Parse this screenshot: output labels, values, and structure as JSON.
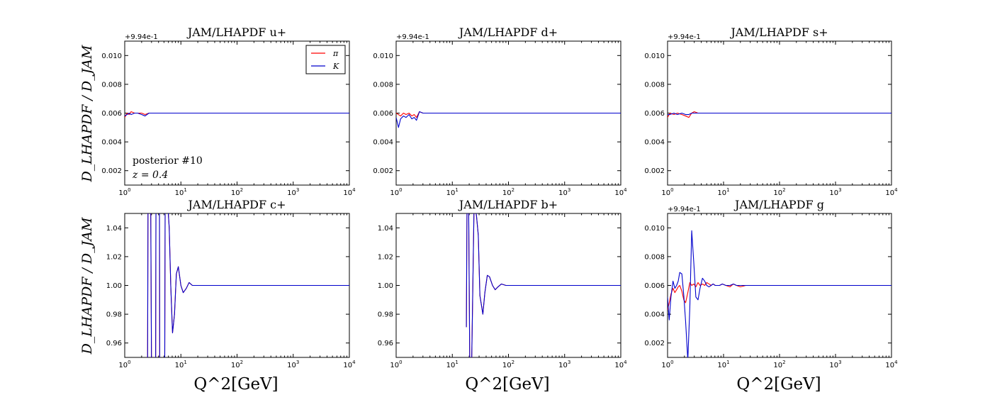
{
  "figure": {
    "ylabel": "D_LHAPDF / D_JAM",
    "xlabel": "Q^2[GeV]",
    "legend": {
      "entries": [
        {
          "label": "π",
          "color": "#ff0000"
        },
        {
          "label": "K",
          "color": "#0000cc"
        }
      ],
      "placement": "top-right"
    },
    "annotation": {
      "line1": "posterior #10",
      "line2": "z = 0.4"
    }
  },
  "chart_data": [
    {
      "type": "line",
      "title": "JAM/LHAPDF u+",
      "x_scale": "log",
      "xlim": [
        1,
        10000
      ],
      "x_ticks": [
        "10^0",
        "10^1",
        "10^2",
        "10^3",
        "10^4"
      ],
      "offset_text": "+9.94e-1",
      "ylim": [
        0.001,
        0.011
      ],
      "y_ticks": [
        "0.002",
        "0.004",
        "0.006",
        "0.008",
        "0.010"
      ],
      "series": [
        {
          "name": "π",
          "color": "#ff0000",
          "x": [
            1,
            1.1,
            1.2,
            1.3,
            1.5,
            1.7,
            2,
            2.3,
            2.7,
            3,
            4,
            6,
            10,
            100,
            1000,
            10000
          ],
          "values": [
            0.0057,
            0.006,
            0.0059,
            0.0061,
            0.006,
            0.006,
            0.006,
            0.0059,
            0.006,
            0.006,
            0.006,
            0.006,
            0.006,
            0.006,
            0.006,
            0.006
          ]
        },
        {
          "name": "K",
          "color": "#0000cc",
          "x": [
            1,
            1.1,
            1.2,
            1.3,
            1.5,
            1.7,
            2,
            2.3,
            2.7,
            3,
            4,
            6,
            10,
            100,
            1000,
            10000
          ],
          "values": [
            0.0058,
            0.0059,
            0.006,
            0.0059,
            0.006,
            0.006,
            0.0059,
            0.0058,
            0.006,
            0.006,
            0.006,
            0.006,
            0.006,
            0.006,
            0.006,
            0.006
          ]
        }
      ]
    },
    {
      "type": "line",
      "title": "JAM/LHAPDF d+",
      "x_scale": "log",
      "xlim": [
        1,
        10000
      ],
      "x_ticks": [
        "10^0",
        "10^1",
        "10^2",
        "10^3",
        "10^4"
      ],
      "offset_text": "+9.94e-1",
      "ylim": [
        0.001,
        0.011
      ],
      "y_ticks": [
        "0.002",
        "0.004",
        "0.006",
        "0.008",
        "0.010"
      ],
      "series": [
        {
          "name": "π",
          "color": "#ff0000",
          "x": [
            1,
            1.1,
            1.2,
            1.35,
            1.5,
            1.7,
            1.9,
            2.1,
            2.3,
            2.6,
            3,
            4,
            6,
            10,
            100,
            1000,
            10000
          ],
          "values": [
            0.006,
            0.0059,
            0.0058,
            0.006,
            0.0059,
            0.006,
            0.0058,
            0.0059,
            0.0057,
            0.0061,
            0.006,
            0.006,
            0.006,
            0.006,
            0.006,
            0.006,
            0.006
          ]
        },
        {
          "name": "K",
          "color": "#0000cc",
          "x": [
            1,
            1.1,
            1.2,
            1.35,
            1.5,
            1.7,
            1.9,
            2.1,
            2.3,
            2.6,
            3,
            4,
            6,
            10,
            100,
            1000,
            10000
          ],
          "values": [
            0.0057,
            0.005,
            0.0056,
            0.0058,
            0.0057,
            0.0059,
            0.0056,
            0.0057,
            0.0055,
            0.0061,
            0.006,
            0.006,
            0.006,
            0.006,
            0.006,
            0.006,
            0.006
          ]
        }
      ]
    },
    {
      "type": "line",
      "title": "JAM/LHAPDF s+",
      "x_scale": "log",
      "xlim": [
        1,
        10000
      ],
      "x_ticks": [
        "10^0",
        "10^1",
        "10^2",
        "10^3",
        "10^4"
      ],
      "offset_text": "+9.94e-1",
      "ylim": [
        0.001,
        0.011
      ],
      "y_ticks": [
        "0.002",
        "0.004",
        "0.006",
        "0.008",
        "0.010"
      ],
      "series": [
        {
          "name": "π",
          "color": "#ff0000",
          "x": [
            1,
            1.1,
            1.3,
            1.5,
            1.8,
            2.1,
            2.4,
            2.7,
            3,
            3.5,
            4,
            6,
            10,
            100,
            1000,
            10000
          ],
          "values": [
            0.0057,
            0.006,
            0.0059,
            0.006,
            0.0059,
            0.0058,
            0.0057,
            0.006,
            0.0061,
            0.006,
            0.006,
            0.006,
            0.006,
            0.006,
            0.006,
            0.006
          ]
        },
        {
          "name": "K",
          "color": "#0000cc",
          "x": [
            1,
            1.1,
            1.3,
            1.5,
            1.8,
            2.1,
            2.4,
            2.7,
            3,
            3.5,
            4,
            6,
            10,
            100,
            1000,
            10000
          ],
          "values": [
            0.0059,
            0.0059,
            0.006,
            0.0059,
            0.006,
            0.0059,
            0.0059,
            0.006,
            0.006,
            0.006,
            0.006,
            0.006,
            0.006,
            0.006,
            0.006,
            0.006
          ]
        }
      ]
    },
    {
      "type": "line",
      "title": "JAM/LHAPDF c+",
      "x_scale": "log",
      "xlim": [
        1,
        10000
      ],
      "x_ticks": [
        "10^0",
        "10^1",
        "10^2",
        "10^3",
        "10^4"
      ],
      "offset_text": "",
      "ylim": [
        0.95,
        1.05
      ],
      "y_ticks": [
        "0.96",
        "0.98",
        "1.00",
        "1.02",
        "1.04"
      ],
      "series": [
        {
          "name": "π",
          "color": "#ff0000",
          "x": [
            2.55,
            2.6,
            2.9,
            3.0,
            3.55,
            3.6,
            4.15,
            4.2,
            5.15,
            5.25,
            5.75,
            6.2,
            6.6,
            7.1,
            7.7,
            8.3,
            9,
            10,
            11,
            12.5,
            14,
            16,
            20,
            30,
            100,
            10000
          ],
          "values": [
            0.94,
            1.06,
            1.06,
            0.94,
            0.94,
            1.06,
            1.06,
            0.94,
            0.94,
            1.06,
            1.06,
            1.04,
            1.0,
            0.967,
            0.98,
            1.008,
            1.013,
            1.0,
            0.995,
            0.998,
            1.002,
            1.0,
            1.0,
            1.0,
            1.0,
            1.0
          ]
        },
        {
          "name": "K",
          "color": "#0000cc",
          "x": [
            2.55,
            2.6,
            2.9,
            3.0,
            3.55,
            3.6,
            4.15,
            4.2,
            5.15,
            5.25,
            5.75,
            6.2,
            6.6,
            7.1,
            7.7,
            8.3,
            9,
            10,
            11,
            12.5,
            14,
            16,
            20,
            30,
            100,
            10000
          ],
          "values": [
            0.94,
            1.06,
            1.06,
            0.94,
            0.94,
            1.06,
            1.06,
            0.94,
            0.94,
            1.06,
            1.06,
            1.04,
            1.0,
            0.967,
            0.98,
            1.008,
            1.013,
            1.0,
            0.995,
            0.998,
            1.002,
            1.0,
            1.0,
            1.0,
            1.0,
            1.0
          ]
        }
      ]
    },
    {
      "type": "line",
      "title": "JAM/LHAPDF b+",
      "x_scale": "log",
      "xlim": [
        1,
        10000
      ],
      "x_ticks": [
        "10^0",
        "10^1",
        "10^2",
        "10^3",
        "10^4"
      ],
      "offset_text": "",
      "ylim": [
        0.95,
        1.05
      ],
      "y_ticks": [
        "0.96",
        "0.98",
        "1.00",
        "1.02",
        "1.04"
      ],
      "series": [
        {
          "name": "π",
          "color": "#ff0000",
          "x": [
            17.8,
            18.3,
            19.5,
            20.5,
            22,
            24.5,
            27,
            29,
            31,
            35,
            38,
            42,
            46,
            52,
            58,
            65,
            75,
            90,
            120,
            1000,
            10000
          ],
          "values": [
            0.971,
            1.06,
            1.06,
            0.94,
            0.94,
            1.06,
            1.048,
            1.035,
            0.993,
            0.98,
            0.995,
            1.007,
            1.006,
            1.0,
            0.997,
            0.999,
            1.001,
            1.0,
            1.0,
            1.0,
            1.0
          ]
        },
        {
          "name": "K",
          "color": "#0000cc",
          "x": [
            17.8,
            18.3,
            19.5,
            20.5,
            22,
            24.5,
            27,
            29,
            31,
            35,
            38,
            42,
            46,
            52,
            58,
            65,
            75,
            90,
            120,
            1000,
            10000
          ],
          "values": [
            0.971,
            1.06,
            1.06,
            0.94,
            0.94,
            1.06,
            1.048,
            1.035,
            0.993,
            0.98,
            0.995,
            1.007,
            1.006,
            1.0,
            0.997,
            0.999,
            1.001,
            1.0,
            1.0,
            1.0,
            1.0
          ]
        }
      ]
    },
    {
      "type": "line",
      "title": "JAM/LHAPDF g",
      "x_scale": "log",
      "xlim": [
        1,
        10000
      ],
      "x_ticks": [
        "10^0",
        "10^1",
        "10^2",
        "10^3",
        "10^4"
      ],
      "offset_text": "+9.94e-1",
      "ylim": [
        0.001,
        0.011
      ],
      "y_ticks": [
        "0.002",
        "0.004",
        "0.006",
        "0.008",
        "0.010"
      ],
      "series": [
        {
          "name": "π",
          "color": "#ff0000",
          "x": [
            1,
            1.07,
            1.15,
            1.25,
            1.35,
            1.45,
            1.55,
            1.65,
            1.8,
            1.95,
            2.1,
            2.3,
            2.5,
            2.7,
            2.95,
            3.2,
            3.5,
            3.8,
            4.2,
            4.6,
            5,
            5.5,
            6,
            6.5,
            7.1,
            7.8,
            8.5,
            9.5,
            11,
            13,
            15,
            17,
            20,
            25,
            30,
            50,
            100,
            1000,
            10000
          ],
          "values": [
            0.0043,
            0.0048,
            0.0054,
            0.0058,
            0.0055,
            0.0057,
            0.0059,
            0.006,
            0.0056,
            0.005,
            0.0048,
            0.0055,
            0.0062,
            0.006,
            0.0061,
            0.0059,
            0.0062,
            0.006,
            0.0061,
            0.006,
            0.0062,
            0.0061,
            0.006,
            0.0061,
            0.006,
            0.006,
            0.006,
            0.0061,
            0.006,
            0.0059,
            0.0061,
            0.006,
            0.0059,
            0.006,
            0.006,
            0.006,
            0.006,
            0.006,
            0.006
          ]
        },
        {
          "name": "K",
          "color": "#0000cc",
          "x": [
            1,
            1.07,
            1.15,
            1.25,
            1.35,
            1.45,
            1.55,
            1.65,
            1.8,
            1.95,
            2.1,
            2.3,
            2.5,
            2.7,
            2.95,
            3.2,
            3.5,
            3.8,
            4.2,
            4.6,
            5,
            5.5,
            6,
            6.5,
            7.1,
            7.8,
            8.5,
            9.5,
            11,
            13,
            15,
            17,
            20,
            25,
            30,
            50,
            100,
            1000,
            10000
          ],
          "values": [
            0.0052,
            0.0036,
            0.0052,
            0.0063,
            0.0058,
            0.006,
            0.0063,
            0.0069,
            0.0068,
            0.0053,
            0.0035,
            0.0008,
            0.0045,
            0.0098,
            0.0075,
            0.0052,
            0.005,
            0.0058,
            0.0065,
            0.0063,
            0.006,
            0.0059,
            0.006,
            0.0061,
            0.006,
            0.006,
            0.006,
            0.0061,
            0.006,
            0.006,
            0.0061,
            0.006,
            0.006,
            0.006,
            0.006,
            0.006,
            0.006,
            0.006,
            0.006
          ]
        }
      ]
    }
  ]
}
